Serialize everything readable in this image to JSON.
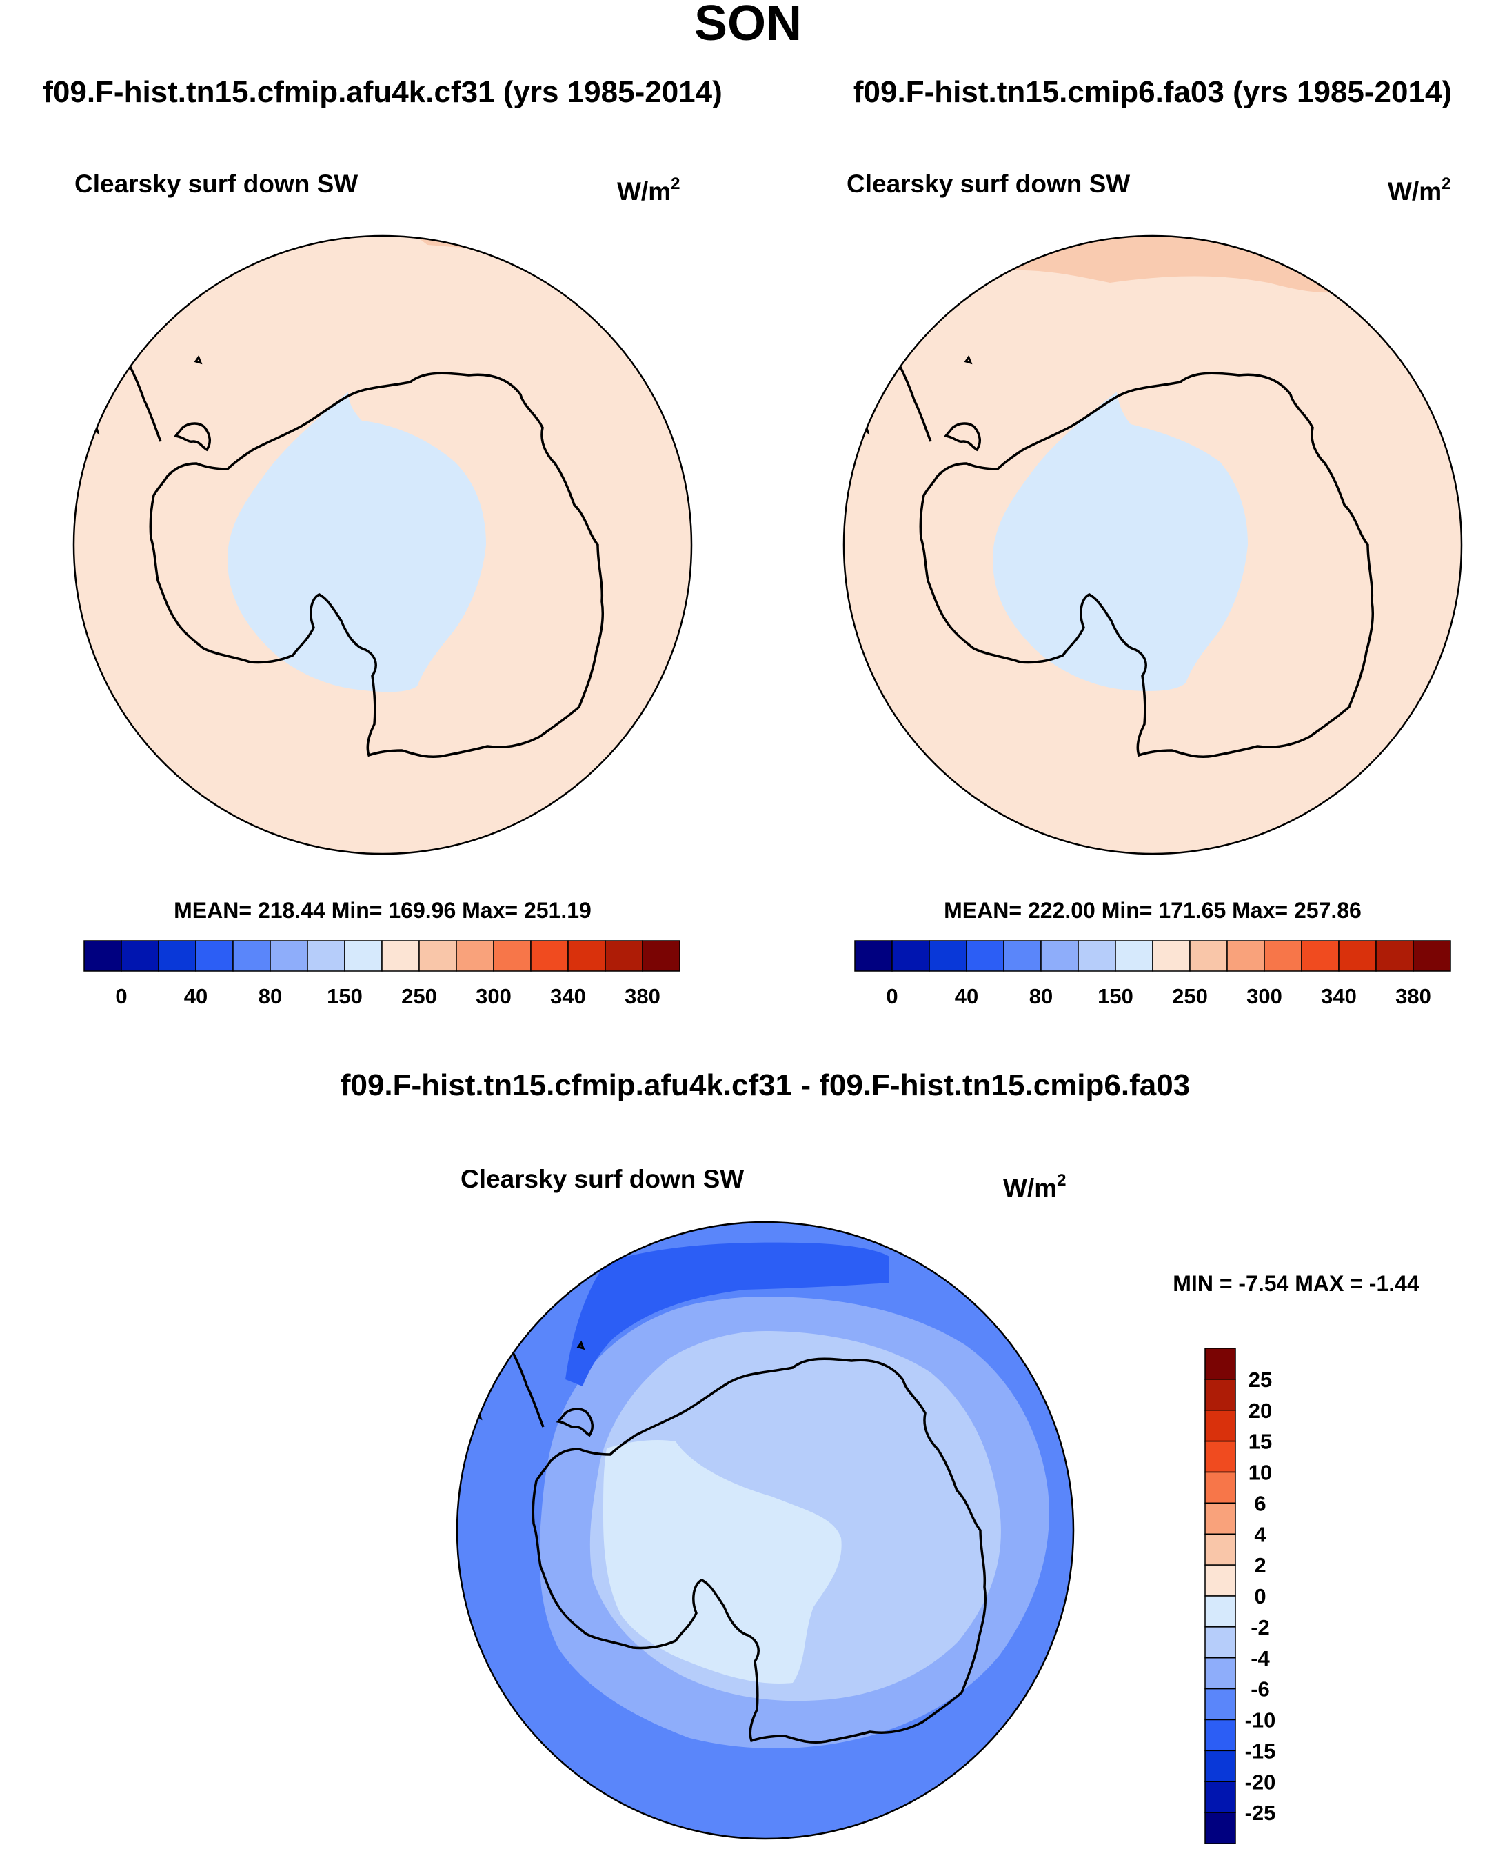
{
  "page_title": "SON",
  "panels": [
    {
      "id": "left",
      "case_title": "f09.F-hist.tn15.cfmip.afu4k.cf31 (yrs 1985-2014)",
      "variable": "Clearsky surf down SW",
      "units_base": "W/m",
      "units_exp": "2",
      "stats": "MEAN= 218.44  Min= 169.96  Max= 251.19",
      "fill_ocean": "#fce4d4",
      "fill_land": "#d6e9fc",
      "fill_edge": "#f9cbb0"
    },
    {
      "id": "right",
      "case_title": "f09.F-hist.tn15.cmip6.fa03 (yrs 1985-2014)",
      "variable": "Clearsky surf down SW",
      "units_base": "W/m",
      "units_exp": "2",
      "stats": "MEAN= 222.00  Min= 171.65  Max= 257.86",
      "fill_ocean": "#fce4d4",
      "fill_land": "#d6e9fc",
      "fill_edge": "#f9cbb0"
    }
  ],
  "abs_colorbar": {
    "colors": [
      "#000080",
      "#0015b0",
      "#0938d8",
      "#2c5ef5",
      "#5a86fa",
      "#8eadfa",
      "#b6cdfa",
      "#d6e9fc",
      "#fce4d4",
      "#f9c6a9",
      "#f9a27b",
      "#f77649",
      "#f04b1f",
      "#d9310c",
      "#ae1c06",
      "#7a0403"
    ],
    "labels": [
      "0",
      "40",
      "80",
      "150",
      "250",
      "300",
      "340",
      "380"
    ]
  },
  "diff_panel": {
    "title": "f09.F-hist.tn15.cfmip.afu4k.cf31 - f09.F-hist.tn15.cmip6.fa03",
    "variable": "Clearsky surf down SW",
    "units_base": "W/m",
    "units_exp": "2",
    "stats": "MIN =  -7.54 MAX =  -1.44",
    "fill_outer": "#5a86fa",
    "fill_mid": "#8eadfa",
    "fill_inner": "#b6cdfa",
    "fill_core": "#d6e9fc",
    "fill_dark": "#2c5ef5"
  },
  "diff_colorbar": {
    "colors": [
      "#7a0403",
      "#ae1c06",
      "#d9310c",
      "#f04b1f",
      "#f77649",
      "#f9a27b",
      "#f9c6a9",
      "#fce4d4",
      "#d6e9fc",
      "#b6cdfa",
      "#8eadfa",
      "#5a86fa",
      "#2c5ef5",
      "#0938d8",
      "#0015b0",
      "#000080"
    ],
    "labels": [
      "25",
      "20",
      "15",
      "10",
      "6",
      "4",
      "2",
      "0",
      "-2",
      "-4",
      "-6",
      "-10",
      "-15",
      "-20",
      "-25"
    ]
  }
}
